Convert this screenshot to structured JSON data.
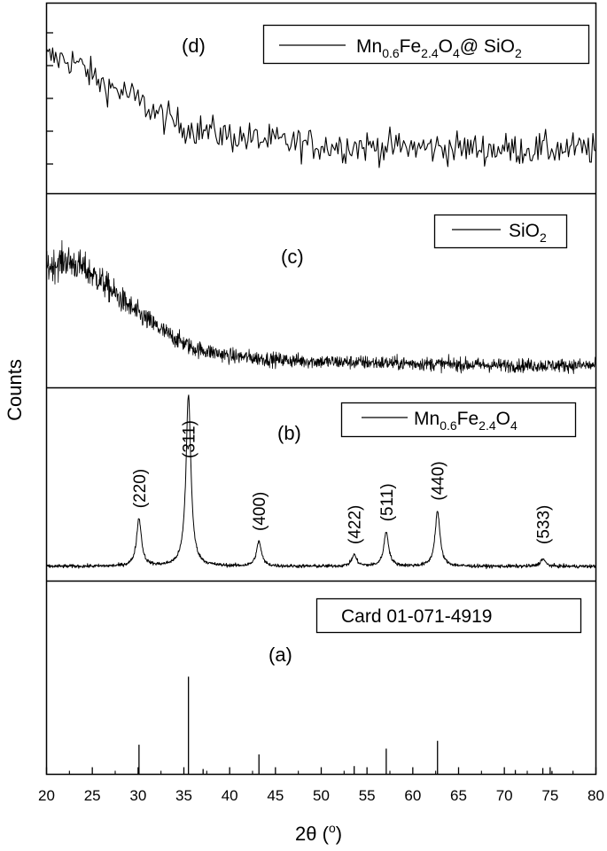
{
  "figure": {
    "ylabel": "Counts",
    "xlabel_symbol": "2θ",
    "xlabel_unit_open": " (",
    "xlabel_degree": "o",
    "xlabel_unit_close": ")"
  },
  "chart_data": {
    "type": "line",
    "x_axis": {
      "label": "2θ (°)",
      "range": [
        20,
        80
      ],
      "ticks": [
        "20",
        "25",
        "30",
        "35",
        "40",
        "45",
        "50",
        "55",
        "60",
        "65",
        "70",
        "75",
        "80"
      ]
    },
    "y_axis": {
      "label": "Counts",
      "tick_labels_shown": false
    },
    "panels": [
      {
        "tag": "(d)",
        "legend": {
          "main": "Mn",
          "sub1": "0.6",
          "mid": "Fe",
          "sub2": "2.4",
          "mid2": "O",
          "sub3": "4",
          "tail": "@ SiO",
          "sub4": "2"
        },
        "shape": "noisy-amorphous",
        "profile": [
          [
            20,
            0.72
          ],
          [
            23,
            0.7
          ],
          [
            26,
            0.58
          ],
          [
            29,
            0.52
          ],
          [
            32,
            0.42
          ],
          [
            35,
            0.35
          ],
          [
            40,
            0.3
          ],
          [
            45,
            0.27
          ],
          [
            50,
            0.25
          ],
          [
            60,
            0.24
          ],
          [
            70,
            0.23
          ],
          [
            80,
            0.23
          ]
        ]
      },
      {
        "tag": "(c)",
        "legend": {
          "main": "SiO",
          "sub1": "2"
        },
        "shape": "amorphous-hump",
        "profile": [
          [
            20,
            0.62
          ],
          [
            22,
            0.66
          ],
          [
            24,
            0.62
          ],
          [
            26,
            0.55
          ],
          [
            28,
            0.46
          ],
          [
            30,
            0.38
          ],
          [
            33,
            0.28
          ],
          [
            36,
            0.2
          ],
          [
            40,
            0.16
          ],
          [
            45,
            0.14
          ],
          [
            50,
            0.13
          ],
          [
            60,
            0.12
          ],
          [
            70,
            0.11
          ],
          [
            80,
            0.11
          ]
        ]
      },
      {
        "tag": "(b)",
        "legend": {
          "main": "Mn",
          "sub1": "0.6",
          "mid": "Fe",
          "sub2": "2.4",
          "mid2": "O",
          "sub3": "4"
        },
        "shape": "crystalline",
        "peaks": [
          {
            "hkl": "(220)",
            "x": 30.1,
            "height": 0.25
          },
          {
            "hkl": "(311)",
            "x": 35.5,
            "height": 0.9
          },
          {
            "hkl": "(400)",
            "x": 43.2,
            "height": 0.13
          },
          {
            "hkl": "(422)",
            "x": 53.6,
            "height": 0.06
          },
          {
            "hkl": "(511)",
            "x": 57.1,
            "height": 0.18
          },
          {
            "hkl": "(440)",
            "x": 62.7,
            "height": 0.29
          },
          {
            "hkl": "(533)",
            "x": 74.2,
            "height": 0.04
          }
        ]
      },
      {
        "tag": "(a)",
        "legend": {
          "main": "Card 01-071-4919"
        },
        "shape": "reference-sticks",
        "sticks": [
          {
            "x": 30.1,
            "intensity": 0.3
          },
          {
            "x": 35.5,
            "intensity": 1.0
          },
          {
            "x": 37.1,
            "intensity": 0.05
          },
          {
            "x": 43.2,
            "intensity": 0.2
          },
          {
            "x": 53.6,
            "intensity": 0.08
          },
          {
            "x": 57.1,
            "intensity": 0.26
          },
          {
            "x": 62.7,
            "intensity": 0.34
          },
          {
            "x": 71.2,
            "intensity": 0.04
          },
          {
            "x": 74.2,
            "intensity": 0.06
          },
          {
            "x": 75.2,
            "intensity": 0.03
          }
        ]
      }
    ]
  }
}
